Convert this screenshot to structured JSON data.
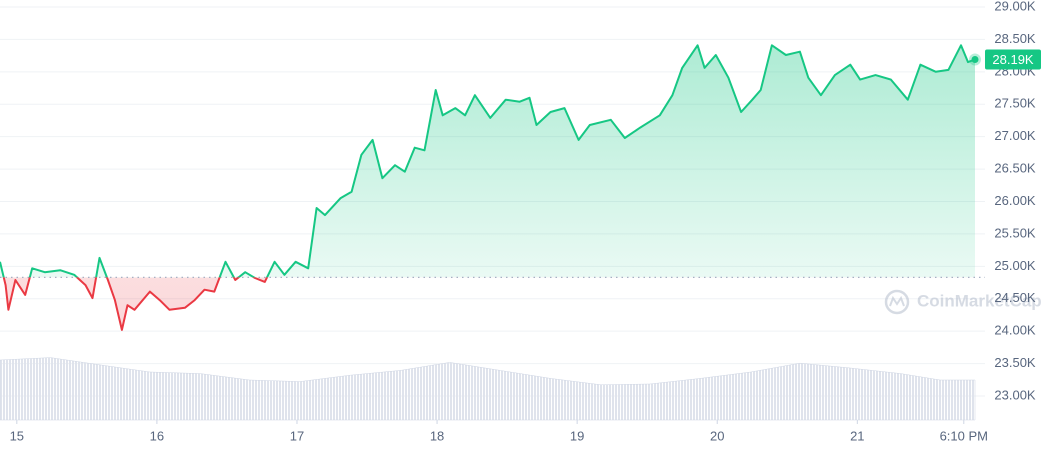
{
  "chart_data": {
    "type": "line",
    "x": [
      14.88,
      14.92,
      14.94,
      14.99,
      15.06,
      15.11,
      15.2,
      15.31,
      15.41,
      15.49,
      15.54,
      15.59,
      15.65,
      15.7,
      15.75,
      15.79,
      15.84,
      15.95,
      16.02,
      16.09,
      16.2,
      16.27,
      16.34,
      16.41,
      16.49,
      16.56,
      16.63,
      16.7,
      16.77,
      16.84,
      16.91,
      16.99,
      17.08,
      17.14,
      17.2,
      17.31,
      17.39,
      17.46,
      17.54,
      17.61,
      17.7,
      17.77,
      17.84,
      17.91,
      17.99,
      18.04,
      18.13,
      18.2,
      18.27,
      18.38,
      18.49,
      18.59,
      18.66,
      18.71,
      18.81,
      18.91,
      19.01,
      19.09,
      19.24,
      19.34,
      19.45,
      19.59,
      19.68,
      19.75,
      19.86,
      19.91,
      19.99,
      20.08,
      20.17,
      20.25,
      20.31,
      20.39,
      20.49,
      20.59,
      20.65,
      20.74,
      20.84,
      20.95,
      21.02,
      21.13,
      21.24,
      21.36,
      21.45,
      21.56,
      21.65,
      21.74,
      21.79,
      21.84
    ],
    "values": [
      25070,
      24710,
      24330,
      24790,
      24560,
      24970,
      24910,
      24940,
      24870,
      24710,
      24510,
      25130,
      24790,
      24480,
      24020,
      24400,
      24330,
      24610,
      24480,
      24330,
      24360,
      24480,
      24640,
      24610,
      25070,
      24790,
      24910,
      24820,
      24760,
      25070,
      24870,
      25070,
      24970,
      25900,
      25790,
      26050,
      26150,
      26720,
      26950,
      26360,
      26560,
      26460,
      26830,
      26790,
      27720,
      27330,
      27440,
      27330,
      27640,
      27290,
      27570,
      27540,
      27600,
      27180,
      27380,
      27440,
      26950,
      27180,
      27260,
      26980,
      27140,
      27330,
      27640,
      28060,
      28410,
      28060,
      28260,
      27910,
      27380,
      27570,
      27720,
      28410,
      28260,
      28310,
      27910,
      27640,
      27950,
      28110,
      27880,
      27950,
      27880,
      27570,
      28110,
      28000,
      28030,
      28410,
      28150,
      28190
    ],
    "up_color": "#16c784",
    "down_color": "#ea3943",
    "baseline": 24830,
    "xlim": [
      14.88,
      21.84
    ],
    "xticks": [
      15,
      16,
      17,
      18,
      19,
      20,
      21,
      {
        "value": 21.76,
        "label": "6:10 PM"
      }
    ],
    "ylim": [
      22630,
      29108
    ],
    "yticks": [
      {
        "value": 23000,
        "label": "23.00K"
      },
      {
        "value": 23500,
        "label": "23.50K"
      },
      {
        "value": 24000,
        "label": "24.00K"
      },
      {
        "value": 24500,
        "label": "24.50K"
      },
      {
        "value": 25000,
        "label": "25.00K"
      },
      {
        "value": 25500,
        "label": "25.50K"
      },
      {
        "value": 26000,
        "label": "26.00K"
      },
      {
        "value": 26500,
        "label": "26.50K"
      },
      {
        "value": 27000,
        "label": "27.00K"
      },
      {
        "value": 27500,
        "label": "27.50K"
      },
      {
        "value": 28000,
        "label": "28.00K"
      },
      {
        "value": 28500,
        "label": "28.50K"
      },
      {
        "value": 29000,
        "label": "29.00K"
      }
    ],
    "grid": true,
    "current_price": {
      "value": 28190,
      "label": "28.19K"
    },
    "watermark": "CoinMarketCap",
    "volume": {
      "x": [
        14.88,
        15.24,
        15.59,
        15.95,
        16.31,
        16.66,
        17.02,
        17.38,
        17.74,
        18.09,
        18.45,
        18.81,
        19.17,
        19.52,
        19.88,
        20.24,
        20.59,
        20.95,
        21.31,
        21.59,
        21.84
      ],
      "values": [
        75,
        78,
        69,
        60,
        58,
        50,
        48,
        56,
        62,
        72,
        62,
        52,
        44,
        45,
        52,
        60,
        71,
        65,
        58,
        50,
        50
      ],
      "y2lim": [
        0,
        100
      ],
      "color": "#cfd6e4"
    }
  }
}
